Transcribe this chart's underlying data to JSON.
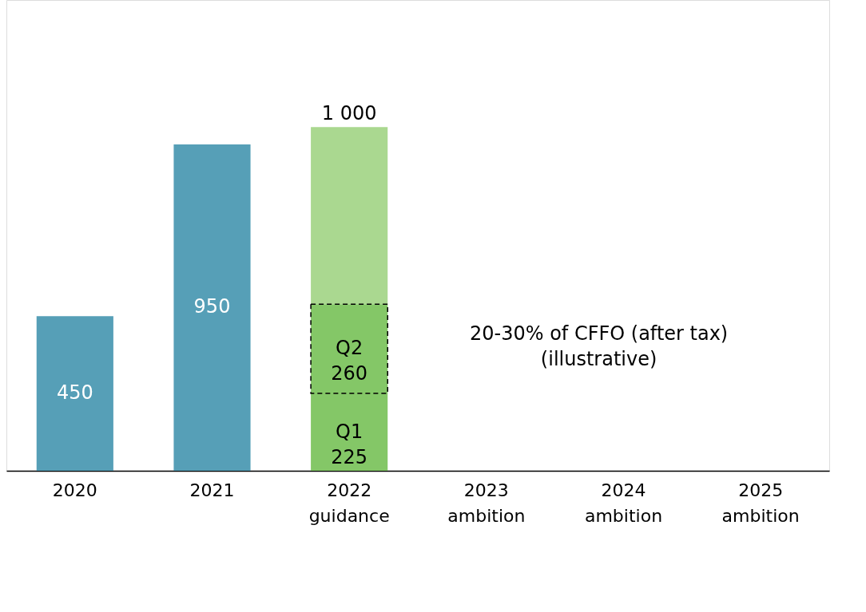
{
  "chart_data": {
    "type": "bar",
    "stacked": true,
    "tick_labels": "x",
    "grid": false,
    "legend": false,
    "categories": [
      "2020",
      "2021",
      "2022\nguidance",
      "2023\nambition",
      "2024\nambition",
      "2025\nambition"
    ],
    "series": [
      {
        "colors": [
          "#569fb7",
          "#569fb7",
          "#84c767",
          null,
          null,
          null
        ],
        "values": [
          450,
          950,
          225,
          null,
          null,
          null
        ],
        "value_labels": [
          "450",
          "950",
          "Q1\n225",
          null,
          null,
          null
        ]
      },
      {
        "color": "#84c767",
        "line_style": "dashed",
        "values": [
          null,
          null,
          260,
          null,
          null,
          null
        ],
        "value_labels": [
          null,
          null,
          "Q2\n260",
          null,
          null,
          null
        ]
      },
      {
        "color": "#aad890",
        "values": [
          null,
          null,
          515,
          null,
          null,
          null
        ]
      }
    ],
    "totals": [
      null,
      null,
      "1 000",
      null,
      null,
      null
    ],
    "annotations": [
      "20-30% of CFFO (after tax)\n(illustrative)"
    ]
  }
}
